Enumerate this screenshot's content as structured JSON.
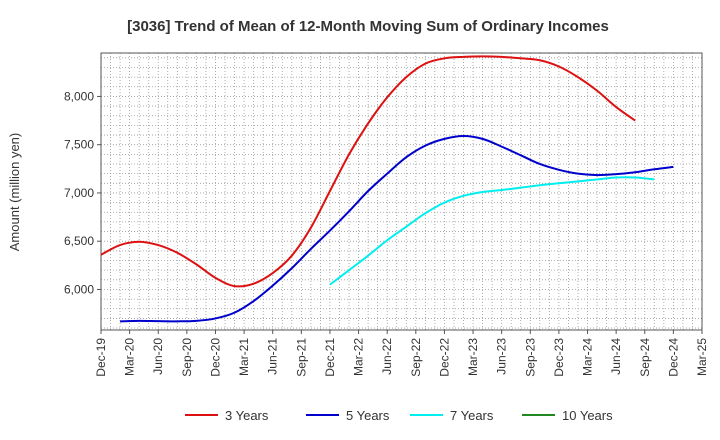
{
  "chart_data": {
    "type": "line",
    "title": "[3036]  Trend of Mean of 12-Month Moving Sum of Ordinary Incomes",
    "xlabel": "",
    "ylabel": "Amount (million yen)",
    "ylim": [
      5580,
      8450
    ],
    "yticks": [
      6000,
      6500,
      7000,
      7500,
      8000
    ],
    "ytick_labels": [
      "6,000",
      "6,500",
      "7,000",
      "7,500",
      "8,000"
    ],
    "xticks": [
      "Dec-19",
      "Mar-20",
      "Jun-20",
      "Sep-20",
      "Dec-20",
      "Mar-21",
      "Jun-21",
      "Sep-21",
      "Dec-21",
      "Mar-22",
      "Jun-22",
      "Sep-22",
      "Dec-22",
      "Mar-23",
      "Jun-23",
      "Sep-23",
      "Dec-23",
      "Mar-24",
      "Jun-24",
      "Sep-24",
      "Dec-24",
      "Mar-25"
    ],
    "grid": true,
    "legend_position": "bottom",
    "series": [
      {
        "name": "3 Years",
        "color": "#dd1111",
        "values": [
          6360,
          6460,
          6495,
          6460,
          6380,
          6260,
          6120,
          6035,
          6060,
          6170,
          6350,
          6640,
          7020,
          7400,
          7720,
          7990,
          8200,
          8340,
          8395,
          8410,
          8415,
          8410,
          8395,
          8375,
          8310,
          8200,
          8060,
          7890,
          7750
        ]
      },
      {
        "name": "5 Years",
        "color": "#0000cc",
        "values": [
          null,
          5670,
          5675,
          5672,
          5670,
          5675,
          5700,
          5760,
          5880,
          6040,
          6220,
          6420,
          6610,
          6810,
          7020,
          7200,
          7370,
          7490,
          7560,
          7590,
          7560,
          7480,
          7390,
          7300,
          7240,
          7200,
          7185,
          7195,
          7215,
          7245,
          7270
        ]
      },
      {
        "name": "7 Years",
        "color": "#00eeee",
        "values": [
          null,
          null,
          null,
          null,
          null,
          null,
          null,
          null,
          null,
          null,
          null,
          null,
          6050,
          6200,
          6350,
          6510,
          6650,
          6790,
          6900,
          6970,
          7010,
          7030,
          7055,
          7080,
          7100,
          7120,
          7140,
          7160,
          7160,
          7140
        ]
      },
      {
        "name": "10 Years",
        "color": "#228822",
        "values": []
      }
    ]
  }
}
